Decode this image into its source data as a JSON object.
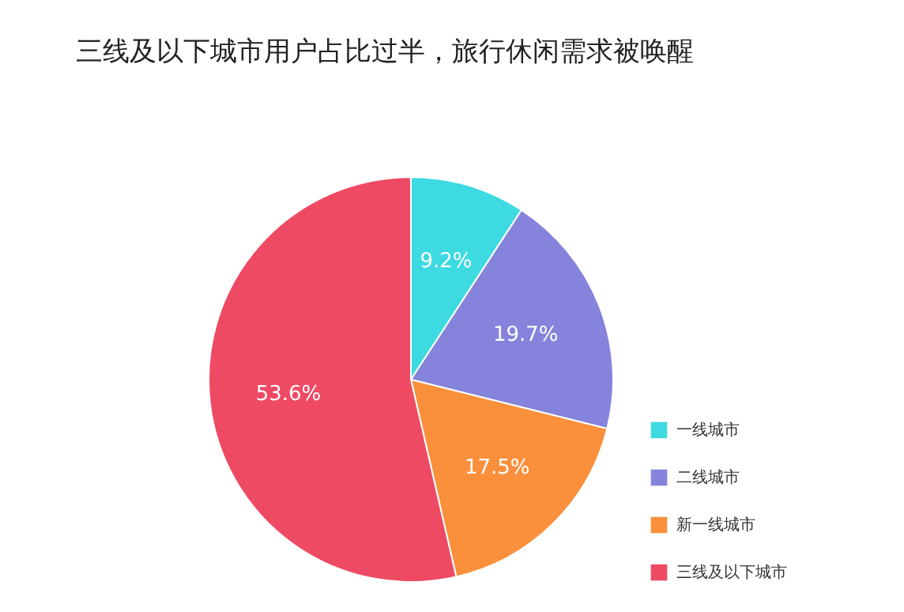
{
  "chart_data": {
    "type": "pie",
    "title": "三线及以下城市用户占比过半，旅行休闲需求被唤醒",
    "categories": [
      "一线城市",
      "二线城市",
      "新一线城市",
      "三线及以下城市"
    ],
    "values": [
      9.2,
      19.7,
      17.5,
      53.6
    ],
    "colors": [
      "#3ddae2",
      "#8683dd",
      "#fa903b",
      "#ef4a64"
    ],
    "value_labels": [
      "9.2%",
      "19.7%",
      "17.5%",
      "53.6%"
    ],
    "legend": "bottom right"
  }
}
